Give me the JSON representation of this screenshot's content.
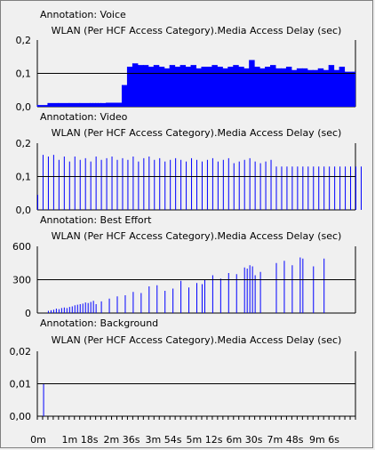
{
  "colors": {
    "background": "#f0f0f0",
    "bars": "#0000ff",
    "axis": "#000000",
    "frame": "#7f7f7f"
  },
  "x_axis": {
    "tick_labels": [
      "0m",
      "1m 18s",
      "2m 36s",
      "3m 54s",
      "5m 12s",
      "6m 30s",
      "7m 48s",
      "9m 6s"
    ],
    "range_sec": [
      0,
      600
    ]
  },
  "chart_data": [
    {
      "type": "bar",
      "annotation": "Annotation: Voice",
      "title": "WLAN (Per HCF Access Category).Media Access Delay (sec)",
      "ytick_labels": [
        "0,2",
        "0,1",
        "0,0"
      ],
      "ylim": [
        0,
        0.2
      ],
      "fill": "area",
      "series": [
        {
          "name": "Voice",
          "x_sec": [
            0,
            20,
            40,
            60,
            80,
            100,
            105,
            110,
            115,
            120,
            130,
            140,
            150,
            160,
            170,
            180,
            190,
            200,
            210,
            220,
            230,
            240,
            250,
            260,
            270,
            280,
            290,
            300,
            310,
            320,
            330,
            340,
            350,
            360,
            370,
            380,
            390,
            400,
            410,
            420,
            430,
            440,
            450,
            460,
            470,
            480,
            490,
            500,
            510,
            520,
            530,
            540,
            550,
            560,
            570,
            580
          ],
          "values": [
            0.005,
            0.011,
            0.011,
            0.011,
            0.011,
            0.011,
            0.011,
            0.011,
            0.011,
            0.011,
            0.012,
            0.012,
            0.012,
            0.065,
            0.12,
            0.13,
            0.125,
            0.125,
            0.12,
            0.125,
            0.12,
            0.115,
            0.125,
            0.12,
            0.125,
            0.12,
            0.125,
            0.115,
            0.12,
            0.12,
            0.125,
            0.12,
            0.115,
            0.12,
            0.125,
            0.12,
            0.115,
            0.14,
            0.12,
            0.115,
            0.12,
            0.125,
            0.115,
            0.115,
            0.12,
            0.11,
            0.115,
            0.115,
            0.11,
            0.11,
            0.115,
            0.11,
            0.125,
            0.11,
            0.12,
            0.105
          ]
        }
      ]
    },
    {
      "type": "bar",
      "annotation": "Annotation: Video",
      "title": "WLAN (Per HCF Access Category).Media Access Delay (sec)",
      "ytick_labels": [
        "0,2",
        "0,1",
        "0,0"
      ],
      "ylim": [
        0,
        0.2
      ],
      "fill": "lines",
      "series": [
        {
          "name": "Video",
          "x_sec": [
            0,
            10,
            20,
            30,
            40,
            50,
            60,
            70,
            80,
            90,
            100,
            110,
            120,
            130,
            140,
            150,
            160,
            170,
            180,
            190,
            200,
            210,
            220,
            230,
            240,
            250,
            260,
            270,
            280,
            290,
            300,
            310,
            320,
            330,
            340,
            350,
            360,
            370,
            380,
            390,
            400,
            410,
            420,
            430,
            440,
            450,
            460,
            470,
            480,
            490,
            500,
            510,
            520,
            530,
            540,
            550,
            560,
            570,
            580,
            590,
            600,
            610
          ],
          "values": [
            0.045,
            0.165,
            0.16,
            0.165,
            0.15,
            0.16,
            0.145,
            0.16,
            0.15,
            0.155,
            0.145,
            0.16,
            0.15,
            0.155,
            0.16,
            0.15,
            0.155,
            0.15,
            0.16,
            0.145,
            0.155,
            0.16,
            0.15,
            0.155,
            0.145,
            0.15,
            0.155,
            0.15,
            0.145,
            0.155,
            0.15,
            0.145,
            0.15,
            0.155,
            0.145,
            0.15,
            0.155,
            0.14,
            0.145,
            0.15,
            0.155,
            0.145,
            0.14,
            0.145,
            0.15,
            0.13,
            0.13,
            0.13,
            0.13,
            0.13,
            0.13,
            0.13,
            0.13,
            0.13,
            0.13,
            0.13,
            0.13,
            0.13,
            0.13,
            0.13,
            0.13,
            0.13
          ]
        }
      ]
    },
    {
      "type": "bar",
      "annotation": "Annotation: Best Effort",
      "title": "WLAN (Per HCF Access Category).Media Access Delay (sec)",
      "ytick_labels": [
        "600",
        "300",
        "0"
      ],
      "ylim": [
        0,
        600
      ],
      "fill": "lines",
      "series": [
        {
          "name": "Best Effort",
          "x_sec": [
            20,
            25,
            30,
            35,
            40,
            45,
            50,
            55,
            60,
            65,
            70,
            75,
            80,
            85,
            90,
            95,
            100,
            105,
            110,
            120,
            135,
            150,
            165,
            180,
            195,
            210,
            225,
            240,
            255,
            270,
            285,
            300,
            310,
            315,
            330,
            345,
            360,
            375,
            390,
            395,
            400,
            405,
            410,
            420,
            450,
            465,
            480,
            495,
            500,
            520,
            540
          ],
          "values": [
            20,
            25,
            30,
            40,
            35,
            45,
            50,
            45,
            55,
            60,
            70,
            75,
            80,
            85,
            95,
            90,
            100,
            110,
            80,
            105,
            130,
            150,
            160,
            190,
            180,
            240,
            250,
            200,
            220,
            290,
            230,
            270,
            260,
            300,
            340,
            310,
            360,
            350,
            410,
            400,
            430,
            420,
            340,
            370,
            450,
            470,
            430,
            500,
            490,
            420,
            490
          ]
        }
      ]
    },
    {
      "type": "bar",
      "annotation": "Annotation: Background",
      "title": "WLAN (Per HCF Access Category).Media Access Delay (sec)",
      "ytick_labels": [
        "0,02",
        "0,01",
        "0,00"
      ],
      "ylim": [
        0,
        0.02
      ],
      "fill": "lines",
      "series": [
        {
          "name": "Background",
          "x_sec": [
            11
          ],
          "values": [
            0.01
          ]
        }
      ]
    }
  ]
}
